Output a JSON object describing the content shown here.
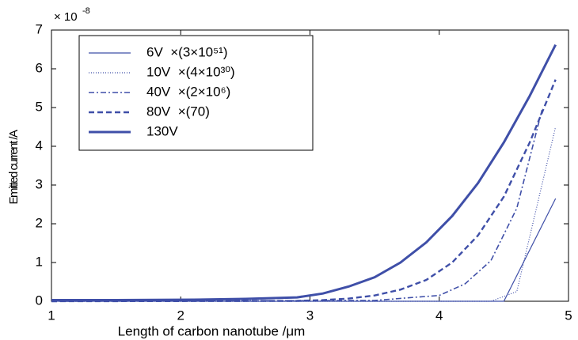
{
  "chart_data": {
    "type": "line",
    "xlabel": "Length of carbon nanotube /μm",
    "ylabel": "Emitted current /A",
    "y_scale_base": "× 10",
    "y_scale_exponent": "-8",
    "xlim": [
      1,
      5
    ],
    "xticks": [
      1,
      2,
      3,
      4,
      5
    ],
    "ylim": [
      0,
      7
    ],
    "yticks": [
      0,
      1,
      2,
      3,
      4,
      5,
      6,
      7
    ],
    "legend": "upper left",
    "series": [
      {
        "name": "6V  ×(3×10⁵¹)",
        "color": "#3f4fa8",
        "line_style": "solid",
        "line_width": 1.2,
        "x": [
          1,
          4.5,
          4.9
        ],
        "values": [
          0,
          0,
          2.65
        ]
      },
      {
        "name": "10V  ×(4×10³⁰)",
        "color": "#3f4fa8",
        "line_style": "dotted",
        "line_width": 1.2,
        "x": [
          1,
          4.4,
          4.6,
          4.9
        ],
        "values": [
          0,
          0,
          0.25,
          4.5
        ]
      },
      {
        "name": "40V  ×(2×10⁶)",
        "color": "#3f4fa8",
        "line_style": "dashdot",
        "line_width": 1.6,
        "x": [
          1,
          3.5,
          3.8,
          4.0,
          4.2,
          4.4,
          4.6,
          4.8
        ],
        "values": [
          0,
          0.02,
          0.1,
          0.15,
          0.45,
          1.05,
          2.4,
          5.0
        ]
      },
      {
        "name": "80V  ×(70)",
        "color": "#3f4fa8",
        "line_style": "dashed",
        "line_width": 2.4,
        "x": [
          1,
          2.9,
          3.1,
          3.3,
          3.5,
          3.7,
          3.9,
          4.1,
          4.3,
          4.5,
          4.7,
          4.9
        ],
        "values": [
          0,
          0.01,
          0.03,
          0.07,
          0.15,
          0.3,
          0.55,
          1.0,
          1.7,
          2.7,
          4.1,
          5.72
        ]
      },
      {
        "name": "130V",
        "color": "#3f4fa8",
        "line_style": "solid",
        "line_width": 3,
        "x": [
          1,
          1.5,
          2.1,
          2.5,
          2.9,
          3.1,
          3.3,
          3.5,
          3.7,
          3.9,
          4.1,
          4.3,
          4.5,
          4.7,
          4.9
        ],
        "values": [
          0.03,
          0.03,
          0.04,
          0.06,
          0.1,
          0.2,
          0.38,
          0.62,
          1.0,
          1.52,
          2.2,
          3.05,
          4.1,
          5.3,
          6.62
        ]
      }
    ]
  }
}
